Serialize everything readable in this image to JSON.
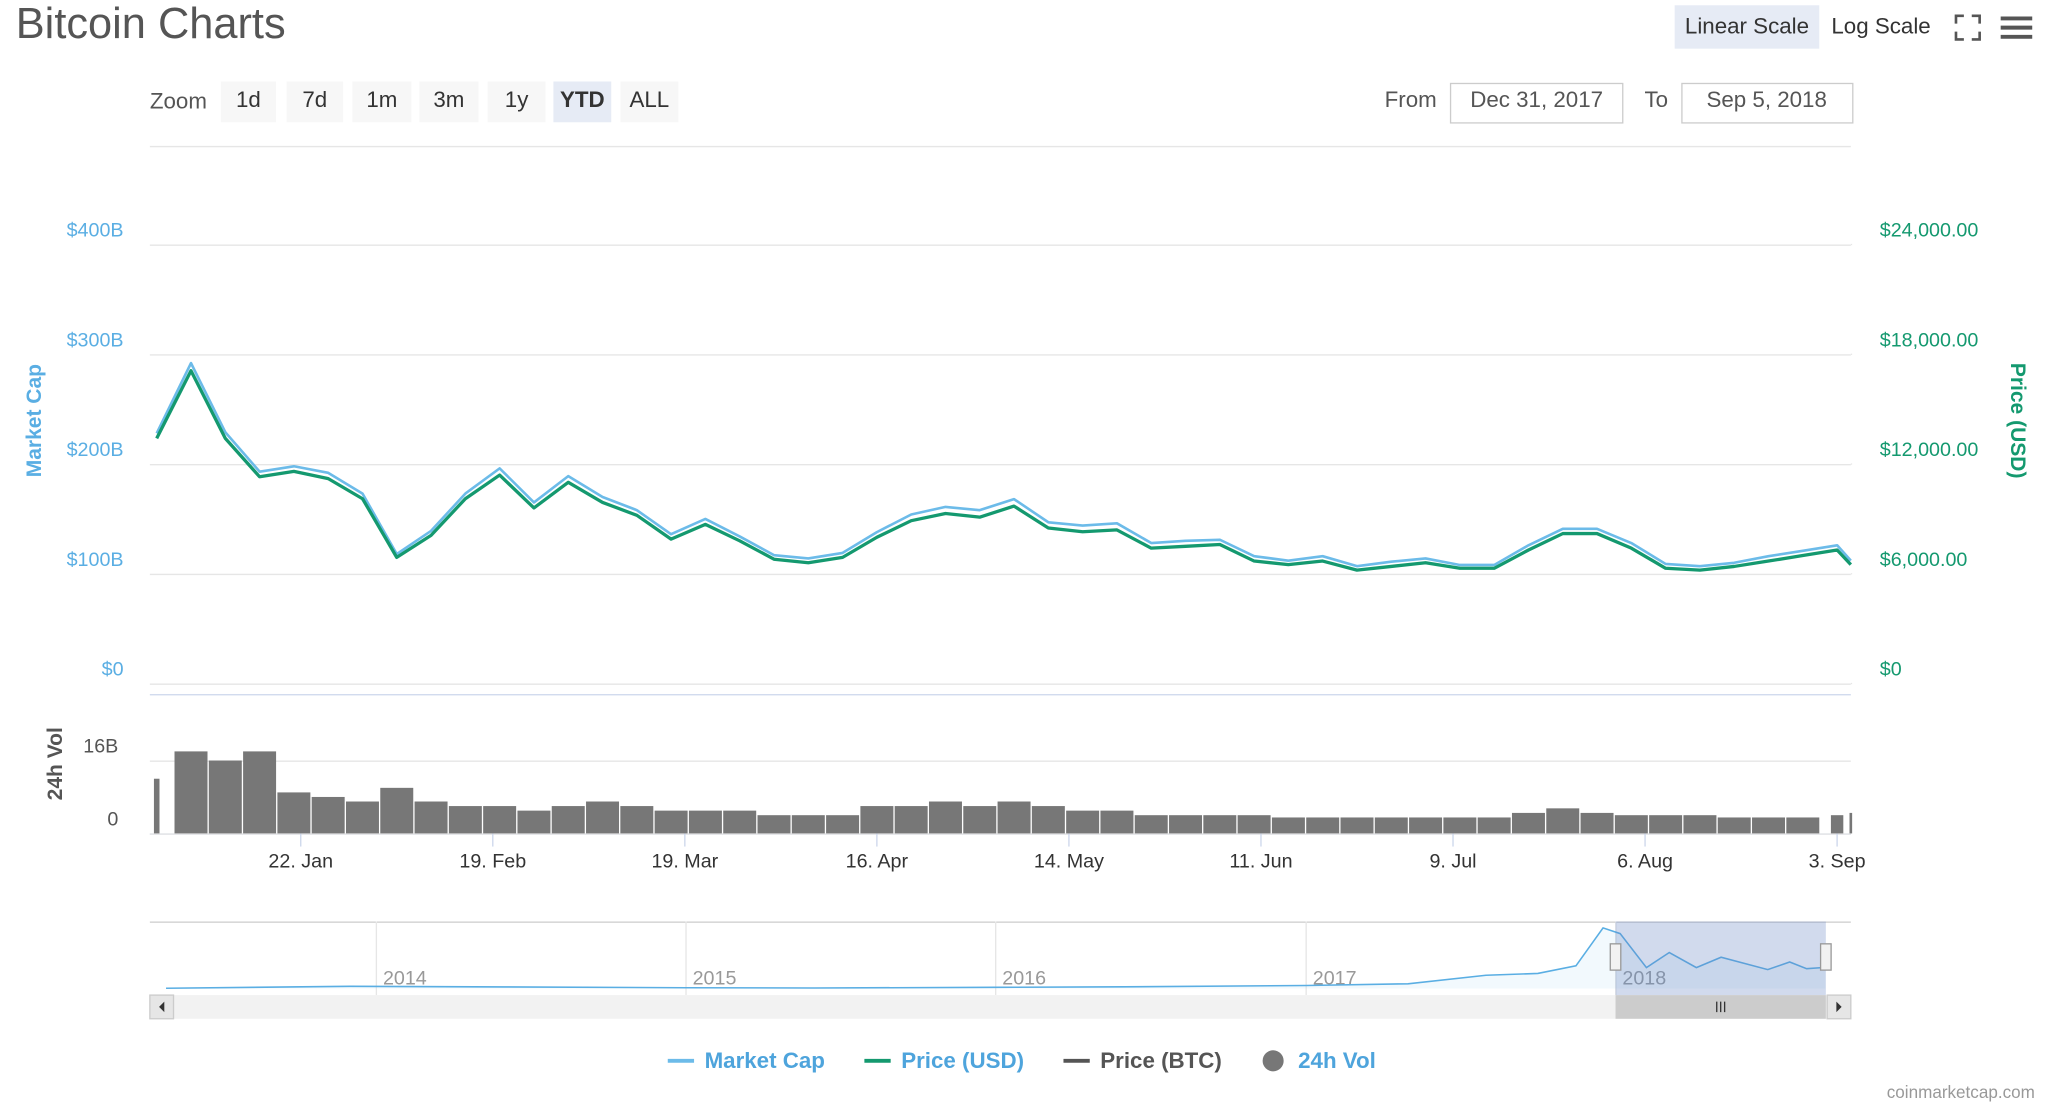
{
  "controls": {
    "linear_scale": "Linear Scale",
    "log_scale": "Log Scale",
    "zoom": "Zoom",
    "zoom_buttons": [
      "1d",
      "7d",
      "1m",
      "3m",
      "1y",
      "YTD",
      "ALL"
    ],
    "active_zoom": "YTD",
    "from": "From",
    "from_date": "Dec 31, 2017",
    "to": "To",
    "to_date": "Sep 5, 2018",
    "credit": "coinmarketcap.com"
  },
  "chart_data": {
    "type": "line",
    "title": "Bitcoin Charts",
    "x": [
      "2018-01-01",
      "2018-01-06",
      "2018-01-11",
      "2018-01-16",
      "2018-01-21",
      "2018-01-26",
      "2018-01-31",
      "2018-02-05",
      "2018-02-10",
      "2018-02-15",
      "2018-02-20",
      "2018-02-25",
      "2018-03-02",
      "2018-03-07",
      "2018-03-12",
      "2018-03-17",
      "2018-03-22",
      "2018-03-27",
      "2018-04-01",
      "2018-04-06",
      "2018-04-11",
      "2018-04-16",
      "2018-04-21",
      "2018-04-26",
      "2018-05-01",
      "2018-05-06",
      "2018-05-11",
      "2018-05-16",
      "2018-05-21",
      "2018-05-26",
      "2018-05-31",
      "2018-06-05",
      "2018-06-10",
      "2018-06-15",
      "2018-06-20",
      "2018-06-25",
      "2018-06-30",
      "2018-07-05",
      "2018-07-10",
      "2018-07-15",
      "2018-07-20",
      "2018-07-25",
      "2018-07-30",
      "2018-08-04",
      "2018-08-09",
      "2018-08-14",
      "2018-08-19",
      "2018-08-24",
      "2018-08-29",
      "2018-09-03",
      "2018-09-05"
    ],
    "xlim": [
      "2017-12-31",
      "2018-09-05"
    ],
    "xticks": [
      {
        "value": "2018-01-22",
        "label": "22. Jan"
      },
      {
        "value": "2018-02-19",
        "label": "19. Feb"
      },
      {
        "value": "2018-03-19",
        "label": "19. Mar"
      },
      {
        "value": "2018-04-16",
        "label": "16. Apr"
      },
      {
        "value": "2018-05-14",
        "label": "14. May"
      },
      {
        "value": "2018-06-11",
        "label": "11. Jun"
      },
      {
        "value": "2018-07-09",
        "label": "9. Jul"
      },
      {
        "value": "2018-08-06",
        "label": "6. Aug"
      },
      {
        "value": "2018-09-03",
        "label": "3. Sep"
      }
    ],
    "ylabel": "Market Cap",
    "ylabel_color": "#5aaee3",
    "ylim": [
      0,
      400
    ],
    "yticks": [
      {
        "value": 0,
        "label": "$0"
      },
      {
        "value": 100,
        "label": "$100B"
      },
      {
        "value": 200,
        "label": "$200B"
      },
      {
        "value": 300,
        "label": "$300B"
      },
      {
        "value": 400,
        "label": "$400B"
      }
    ],
    "y2label": "Price (USD)",
    "y2label_color": "#14996f",
    "y2lim": [
      0,
      24000
    ],
    "y2ticks": [
      {
        "value": 0,
        "label": "$0"
      },
      {
        "value": 6000,
        "label": "$6,000.00"
      },
      {
        "value": 12000,
        "label": "$12,000.00"
      },
      {
        "value": 18000,
        "label": "$18,000.00"
      },
      {
        "value": 24000,
        "label": "$24,000.00"
      }
    ],
    "vol_label": "24h Vol",
    "vol_label_color": "#555555",
    "vol_ylim": [
      0,
      30
    ],
    "vol_yticks": [
      0,
      {
        "value": 16,
        "label": "16B"
      }
    ],
    "grid": true,
    "series": [
      {
        "name": "Market Cap",
        "color": "#6cbbe9",
        "axis": "y",
        "mark": "line",
        "values": [
          228,
          292,
          229,
          193,
          198,
          192,
          173,
          118,
          139,
          173,
          196,
          165,
          189,
          170,
          158,
          136,
          150,
          134,
          117,
          114,
          119,
          138,
          154,
          161,
          158,
          168,
          147,
          144,
          146,
          128,
          130,
          131,
          116,
          112,
          116,
          107,
          111,
          114,
          108,
          108,
          126,
          141,
          141,
          128,
          109,
          107,
          110,
          116,
          121,
          126,
          112
        ]
      },
      {
        "name": "Price (USD)",
        "color": "#14996f",
        "axis": "y2",
        "mark": "line",
        "values": [
          13400,
          17100,
          13400,
          11300,
          11600,
          11200,
          10100,
          6900,
          8100,
          10100,
          11400,
          9600,
          11000,
          9900,
          9200,
          7900,
          8700,
          7800,
          6800,
          6600,
          6900,
          8000,
          8900,
          9300,
          9100,
          9700,
          8500,
          8300,
          8400,
          7400,
          7500,
          7600,
          6700,
          6500,
          6700,
          6200,
          6400,
          6600,
          6300,
          6300,
          7300,
          8200,
          8200,
          7400,
          6300,
          6200,
          6400,
          6700,
          7000,
          7300,
          6500
        ]
      },
      {
        "name": "Price (BTC)",
        "color": "#555555",
        "mark": "line",
        "visible": false
      },
      {
        "name": "24h Vol",
        "color": "#777777",
        "axis": "vol",
        "mark": "bar",
        "values": [
          12,
          18,
          16,
          18,
          9,
          8,
          7,
          10,
          7,
          6,
          6,
          5,
          6,
          7,
          6,
          5,
          5,
          5,
          4,
          4,
          4,
          6,
          6,
          7,
          6,
          7,
          6,
          5,
          5,
          4,
          4,
          4,
          4,
          3.5,
          3.5,
          3.5,
          3.5,
          3.5,
          3.5,
          3.5,
          4.5,
          5.5,
          4.5,
          4,
          4,
          4,
          3.5,
          3.5,
          3.5,
          4,
          4.5
        ]
      }
    ],
    "legend_color": "#4ea4dc",
    "navigator": {
      "color": "#5aaee3",
      "x": [
        "2013-04-28",
        "2013-12-01",
        "2014-06-01",
        "2015-01-01",
        "2015-06-01",
        "2016-01-01",
        "2016-06-01",
        "2017-01-01",
        "2017-05-01",
        "2017-08-01",
        "2017-10-01",
        "2017-11-15",
        "2017-12-17",
        "2018-01-06",
        "2018-02-06",
        "2018-03-05",
        "2018-04-06",
        "2018-05-05",
        "2018-06-29",
        "2018-07-25",
        "2018-08-14",
        "2018-09-05"
      ],
      "values": [
        1.5,
        12,
        8,
        4,
        3,
        6,
        9,
        16,
        25,
        70,
        80,
        120,
        320,
        290,
        110,
        190,
        110,
        165,
        100,
        140,
        105,
        112
      ],
      "xlim": [
        "2013-04-09",
        "2018-10-05"
      ],
      "ylim": [
        0,
        340
      ],
      "xticks": [
        {
          "value": "2014-01-01",
          "label": "2014"
        },
        {
          "value": "2015-01-01",
          "label": "2015"
        },
        {
          "value": "2016-01-01",
          "label": "2016"
        },
        {
          "value": "2017-01-01",
          "label": "2017"
        },
        {
          "value": "2018-01-01",
          "label": "2018"
        }
      ]
    }
  }
}
